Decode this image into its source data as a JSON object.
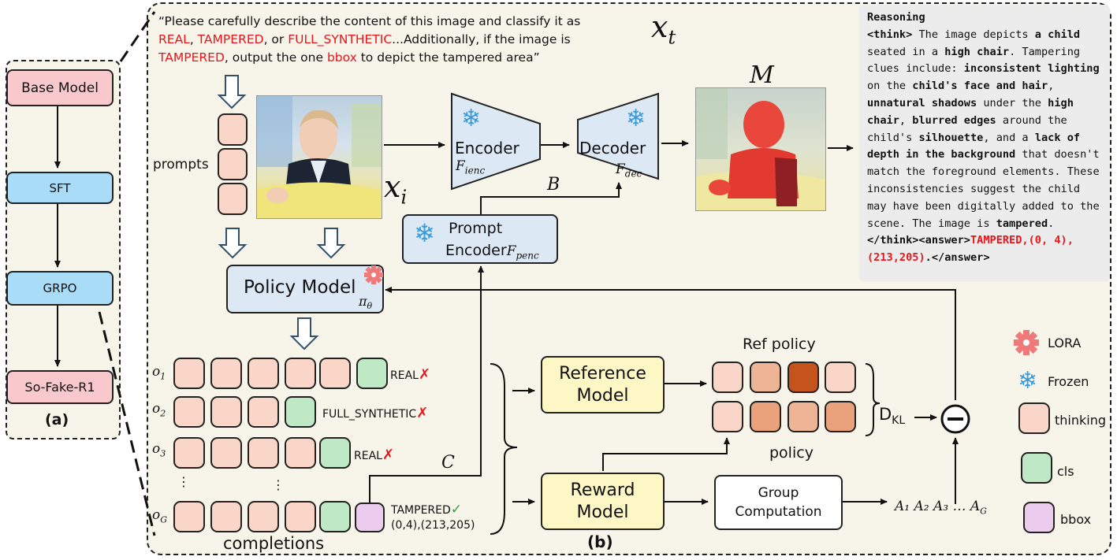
{
  "panel_a": {
    "label": "(a)",
    "steps": [
      "Base Model",
      "SFT",
      "GRPO",
      "So-Fake-R1"
    ]
  },
  "panel_b": {
    "label": "(b)",
    "prompt_text": {
      "p1": "“Please carefully describe the content of this image and classify it as",
      "real": "REAL",
      "sep1": ", ",
      "tampered": "TAMPERED",
      "sep2": ", or ",
      "full_synthetic": "FULL_SYNTHETIC",
      "p2": "...Additionally, if the image is",
      "tampered2": "TAMPERED",
      "p3": ", output the one ",
      "bbox": "bbox",
      "p4": " to depict the tampered area”"
    },
    "symbols": {
      "x_t": "x",
      "x_t_sub": "t",
      "x_i": "x",
      "x_i_sub": "i",
      "M": "M",
      "B": "B",
      "C": "C",
      "pi": "π",
      "pi_sub": "θ",
      "dkl": "D",
      "dkl_sub": "KL",
      "advantages": "A₁ A₂ A₃ … A",
      "advantages_sub": "G"
    },
    "prompts_label": "prompts",
    "encoder": {
      "label": "Encoder",
      "sub": "F",
      "sub2": "ienc"
    },
    "decoder": {
      "label": "Decoder",
      "sub": "F",
      "sub2": "dec"
    },
    "prompt_encoder": {
      "line1": "Prompt",
      "line2": "Encoder",
      "sub": "F",
      "sub2": "penc"
    },
    "policy_model": "Policy Model",
    "reference_model": {
      "line1": "Reference",
      "line2": "Model"
    },
    "reward_model": {
      "line1": "Reward",
      "line2": "Model"
    },
    "group_computation": {
      "line1": "Group",
      "line2": "Computation"
    },
    "ref_policy_label": "Ref policy",
    "policy_label": "policy",
    "completions_label": "completions",
    "completions": [
      {
        "name": "o",
        "sub": "1",
        "result": "REAL",
        "mark": "✗"
      },
      {
        "name": "o",
        "sub": "2",
        "result": "FULL_SYNTHETIC",
        "mark": "✗"
      },
      {
        "name": "o",
        "sub": "3",
        "result": "REAL",
        "mark": "✗"
      },
      {
        "name": "o",
        "sub": "G",
        "result": "TAMPERED",
        "mark": "✓",
        "bbox": "(0,4),(213,205)"
      }
    ],
    "dots": "⋮",
    "legend": [
      {
        "icon": "lora-icon",
        "label": "LORA"
      },
      {
        "icon": "snowflake-icon",
        "label": "Frozen"
      },
      {
        "icon": "thinking-token",
        "label": "thinking"
      },
      {
        "icon": "cls-token",
        "label": "cls"
      },
      {
        "icon": "bbox-token",
        "label": "bbox"
      }
    ],
    "colors": {
      "thinking": "#f9d6c8",
      "cls": "#bfe8c4",
      "bbox": "#ebcbee",
      "ref1": "#f9d6c8",
      "ref2": "#eeb496",
      "ref3": "#c4541c",
      "ref4": "#f9d6c8",
      "pol1": "#f9d6c8",
      "pol2": "#e9a27c",
      "pol3": "#eeb496",
      "pol4": "#e9a27c"
    }
  },
  "reasoning": {
    "title": "Reasoning",
    "t1": "<think>",
    "t2": " The image depicts ",
    "t3": "a child",
    "t4": " seated in a ",
    "t5": "high chair",
    "t6": ". Tampering clues include: ",
    "t7": "inconsistent lighting",
    "t8": " on the ",
    "t9": "child's face and hair",
    "t10": ", ",
    "t11": "unnatural shadows",
    "t12": " under the ",
    "t13": "high chair",
    "t14": ", ",
    "t15": "blurred edges",
    "t16": " around the child's ",
    "t17": "silhouette",
    "t18": ", and a ",
    "t19": "lack of depth in the background",
    "t20": " that doesn't match the foreground elements. These inconsistencies suggest the child may have been digitally added to the scene. The image is ",
    "t21": "tampered",
    "t22": ".",
    "t23": "</think><answer>",
    "t24": "TAMPERED,(0, 4),(213,205)",
    "t25": ".</answer>"
  }
}
